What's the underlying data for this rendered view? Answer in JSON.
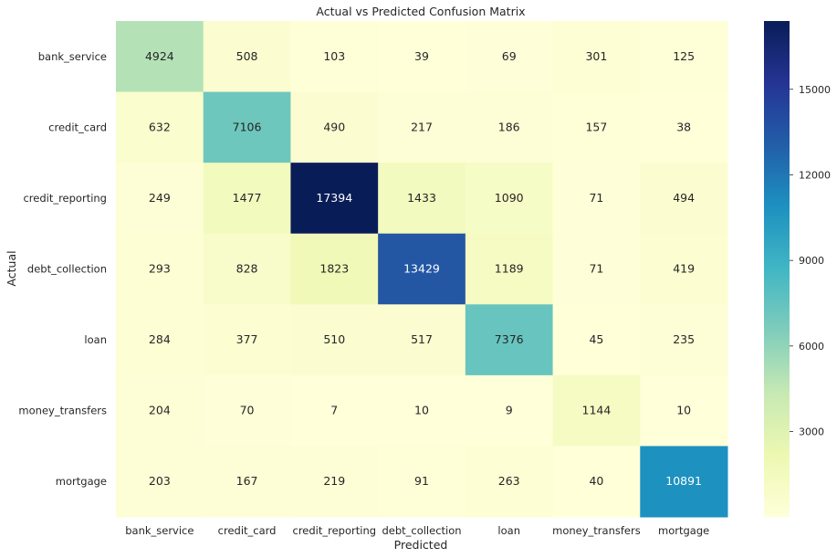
{
  "chart_data": {
    "type": "heatmap",
    "title": "Actual vs Predicted Confusion Matrix",
    "xlabel": "Predicted",
    "ylabel": "Actual",
    "x_categories": [
      "bank_service",
      "credit_card",
      "credit_reporting",
      "debt_collection",
      "loan",
      "money_transfers",
      "mortgage"
    ],
    "y_categories": [
      "bank_service",
      "credit_card",
      "credit_reporting",
      "debt_collection",
      "loan",
      "money_transfers",
      "mortgage"
    ],
    "values": [
      [
        4924,
        508,
        103,
        39,
        69,
        301,
        125
      ],
      [
        632,
        7106,
        490,
        217,
        186,
        157,
        38
      ],
      [
        249,
        1477,
        17394,
        1433,
        1090,
        71,
        494
      ],
      [
        293,
        828,
        1823,
        13429,
        1189,
        71,
        419
      ],
      [
        284,
        377,
        510,
        517,
        7376,
        45,
        235
      ],
      [
        204,
        70,
        7,
        10,
        9,
        1144,
        10
      ],
      [
        203,
        167,
        219,
        91,
        263,
        40,
        10891
      ]
    ],
    "colormap": "YlGnBu",
    "colorbar": {
      "min": 7,
      "max": 17394,
      "ticks": [
        3000,
        6000,
        9000,
        12000,
        15000
      ]
    },
    "grid": false,
    "legend": "colorbar-right"
  }
}
